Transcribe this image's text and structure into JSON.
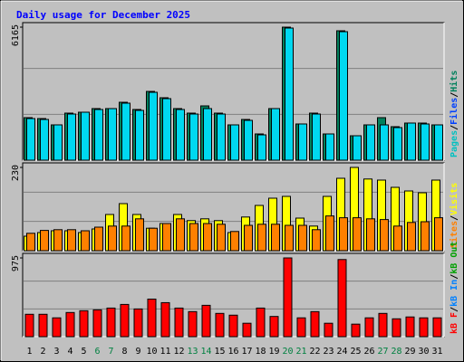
{
  "chart_data": {
    "type": "bar",
    "title": "Daily usage for December 2025",
    "categories": [
      "1",
      "2",
      "3",
      "4",
      "5",
      "6",
      "7",
      "8",
      "9",
      "10",
      "11",
      "12",
      "13",
      "14",
      "15",
      "16",
      "17",
      "18",
      "19",
      "20",
      "21",
      "22",
      "23",
      "24",
      "25",
      "26",
      "27",
      "28",
      "29",
      "30",
      "31"
    ],
    "highlight_categories": [
      5,
      6,
      12,
      13,
      19,
      20,
      26,
      27
    ],
    "highlight_color": "#008040",
    "category_color": "#000000",
    "separator": "/",
    "panels": [
      {
        "ylim": [
          0,
          6165
        ],
        "yticks": [
          6165
        ],
        "legend": [
          {
            "text": "Pages",
            "color": "#00c0c0"
          },
          {
            "text": "Files",
            "color": "#0040ff"
          },
          {
            "text": "Hits",
            "color": "#00805c"
          }
        ],
        "series": [
          {
            "color": "#00805c",
            "values": [
              1971,
              1929,
              1636,
              2181,
              2223,
              2391,
              2391,
              2684,
              2349,
              3187,
              2894,
              2391,
              2181,
              2516,
              2181,
              1636,
              1887,
              1216,
              2391,
              6165,
              1678,
              2181,
              1216,
              5997,
              1132,
              1636,
              1971,
              1552,
              1720,
              1720,
              1636
            ]
          },
          {
            "color": "#00d8f0",
            "values": [
              1929,
              1887,
              1636,
              2139,
              2223,
              2349,
              2391,
              2642,
              2307,
              3146,
              2852,
              2349,
              2139,
              2391,
              2139,
              1636,
              1845,
              1174,
              2391,
              6123,
              1678,
              2139,
              1216,
              5955,
              1132,
              1636,
              1636,
              1510,
              1720,
              1678,
              1636
            ]
          }
        ]
      },
      {
        "ylim": [
          0,
          230
        ],
        "yticks": [
          230
        ],
        "legend": [
          {
            "text": "Sites",
            "color": "#ff8000"
          },
          {
            "text": "Visits",
            "color": "#ffff00"
          }
        ],
        "series": [
          {
            "color": "#ffff00",
            "values": [
              40,
              50,
              55,
              55,
              50,
              60,
              100,
              130,
              100,
              62,
              75,
              100,
              83,
              88,
              83,
              50,
              93,
              125,
              145,
              150,
              90,
              68,
              150,
              200,
              230,
              198,
              195,
              175,
              165,
              160,
              195
            ]
          },
          {
            "color": "#ff8000",
            "values": [
              48,
              56,
              58,
              58,
              55,
              65,
              68,
              68,
              88,
              62,
              75,
              88,
              75,
              75,
              73,
              53,
              70,
              73,
              73,
              70,
              70,
              58,
              96,
              91,
              91,
              88,
              86,
              68,
              78,
              80,
              91
            ]
          }
        ]
      },
      {
        "ylim": [
          0,
          975
        ],
        "yticks": [
          975
        ],
        "legend": [
          {
            "text": "kB F",
            "color": "#ff0000"
          },
          {
            "text": "kB In",
            "color": "#0080ff"
          },
          {
            "text": "kB Out",
            "color": "#00a000"
          }
        ],
        "series": [
          {
            "color": "#ff0000",
            "values": [
              277,
              277,
              233,
              299,
              321,
              332,
              354,
              399,
              343,
              465,
              421,
              354,
              310,
              388,
              288,
              266,
              166,
              354,
              250,
              975,
              233,
              310,
              166,
              955,
              155,
              233,
              288,
              221,
              244,
              233,
              233
            ]
          }
        ]
      }
    ]
  }
}
